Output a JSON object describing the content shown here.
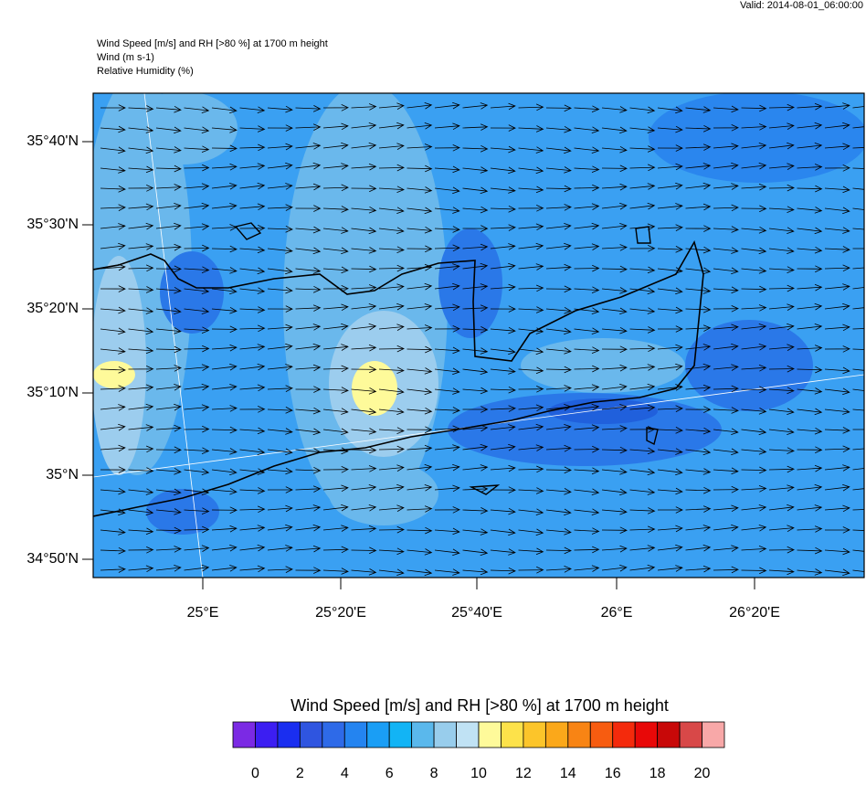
{
  "header": {
    "valid": "Valid: 2014-08-01_06:00:00",
    "lines": [
      "Wind Speed [m/s] and RH [>80 %] at 1700 m height",
      "Wind   (m s-1)",
      "Relative Humidity   (%)"
    ]
  },
  "map": {
    "lat_labels": [
      "35°40'N",
      "35°30'N",
      "35°20'N",
      "35°10'N",
      "35°N",
      "34°50'N"
    ],
    "lon_labels": [
      "25°E",
      "25°20'E",
      "25°40'E",
      "26°E",
      "26°20'E"
    ]
  },
  "colorbar": {
    "title": "Wind Speed [m/s] and RH [>80 %] at 1700 m height",
    "colors": [
      "#7b2ae4",
      "#3c1ef2",
      "#1a2ef0",
      "#2f55e0",
      "#2e6ae8",
      "#2484f0",
      "#1a9ef5",
      "#12b4f5",
      "#5ab8ec",
      "#98cdec",
      "#c0e2f4",
      "#fefa9a",
      "#fde24a",
      "#fcc52a",
      "#fba81a",
      "#f88414",
      "#f75c10",
      "#f42a0c",
      "#e80808",
      "#c80808",
      "#d84848",
      "#f8a8a8"
    ],
    "labels": [
      0,
      2,
      4,
      6,
      8,
      10,
      12,
      14,
      16,
      18,
      20
    ]
  }
}
